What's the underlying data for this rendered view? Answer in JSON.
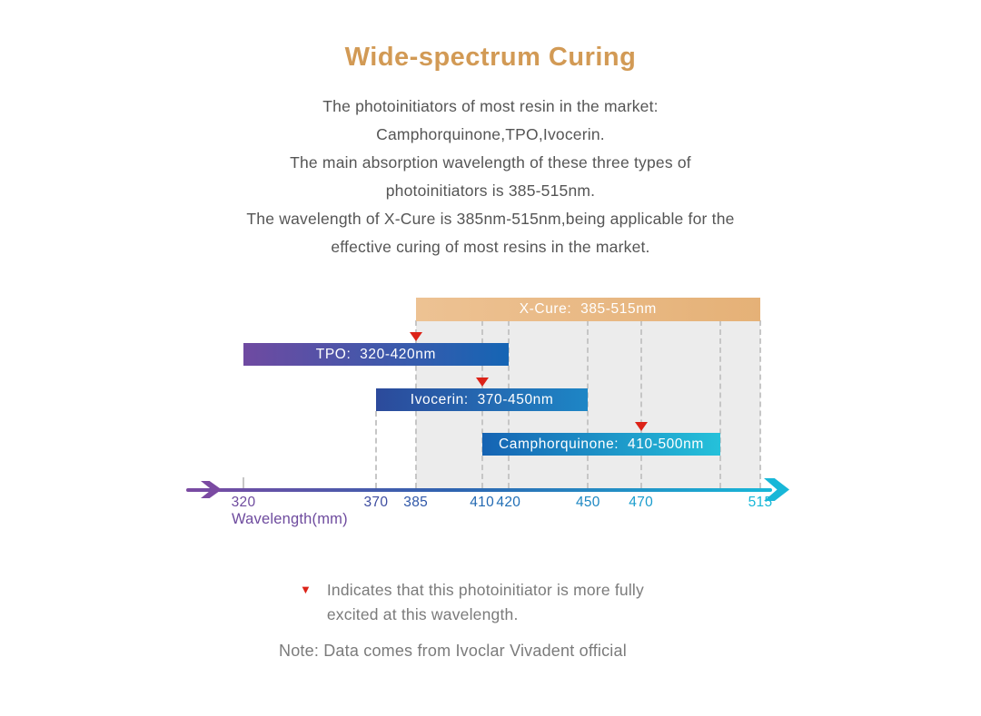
{
  "title": {
    "text": "Wide-spectrum Curing",
    "color": "#d29a55"
  },
  "intro": {
    "lines": [
      "The photoinitiators of most resin in the market:",
      "Camphorquinone,TPO,Ivocerin.",
      "The main absorption wavelength of these three types of",
      "photoinitiators is 385-515nm.",
      "The wavelength of X-Cure is 385nm-515nm,being applicable for the",
      "effective curing of most resins in the market."
    ]
  },
  "chart_data": {
    "type": "bar",
    "orientation": "horizontal-range",
    "xlabel": "Wavelength(mm)",
    "axis": {
      "min": 320,
      "max": 515,
      "ticks": [
        {
          "value": 320,
          "color": "#6e4b9e"
        },
        {
          "value": 370,
          "color": "#3e4da0"
        },
        {
          "value": 385,
          "color": "#2f57a8"
        },
        {
          "value": 410,
          "color": "#2268b2"
        },
        {
          "value": 420,
          "color": "#1f6eb6"
        },
        {
          "value": 450,
          "color": "#1c87c3"
        },
        {
          "value": 470,
          "color": "#199ccd"
        },
        {
          "value": 515,
          "color": "#18b7d8"
        }
      ],
      "gridlines": [
        320,
        370,
        385,
        410,
        420,
        450,
        470,
        500,
        515
      ],
      "line_gradient": [
        "#7b4aa2",
        "#2f63b0",
        "#18b7d8"
      ]
    },
    "highlight_region": {
      "start_nm": 385,
      "end_nm": 515,
      "color": "#ececec"
    },
    "series": [
      {
        "name": "XCure",
        "label": "X-Cure:  385-515nm",
        "start_nm": 385,
        "end_nm": 515,
        "peak_nm": null,
        "colors": [
          "#edc293",
          "#e5b177"
        ],
        "text_color": "#ffffff"
      },
      {
        "name": "TPO",
        "label": "TPO:  320-420nm",
        "start_nm": 320,
        "end_nm": 420,
        "peak_nm": 385,
        "colors": [
          "#6f4aa1",
          "#1565b4"
        ],
        "text_color": "#ffffff"
      },
      {
        "name": "Ivocerin",
        "label": "Ivocerin:  370-450nm",
        "start_nm": 370,
        "end_nm": 450,
        "peak_nm": 410,
        "colors": [
          "#2c4a9b",
          "#1d86c6"
        ],
        "text_color": "#ffffff"
      },
      {
        "name": "Camphorquinone",
        "label": "Camphorquinone:  410-500nm",
        "start_nm": 410,
        "end_nm": 500,
        "peak_nm": 470,
        "colors": [
          "#1563b3",
          "#25c1da"
        ],
        "text_color": "#ffffff"
      }
    ],
    "marker": {
      "symbol": "▼",
      "color": "#dc2318"
    }
  },
  "legend": {
    "marker": "▼",
    "marker_color": "#dc2318",
    "lines": [
      "Indicates that this photoinitiator is more fully",
      "excited at this wavelength."
    ]
  },
  "note": {
    "text": "Note: Data comes from Ivoclar Vivadent official"
  }
}
